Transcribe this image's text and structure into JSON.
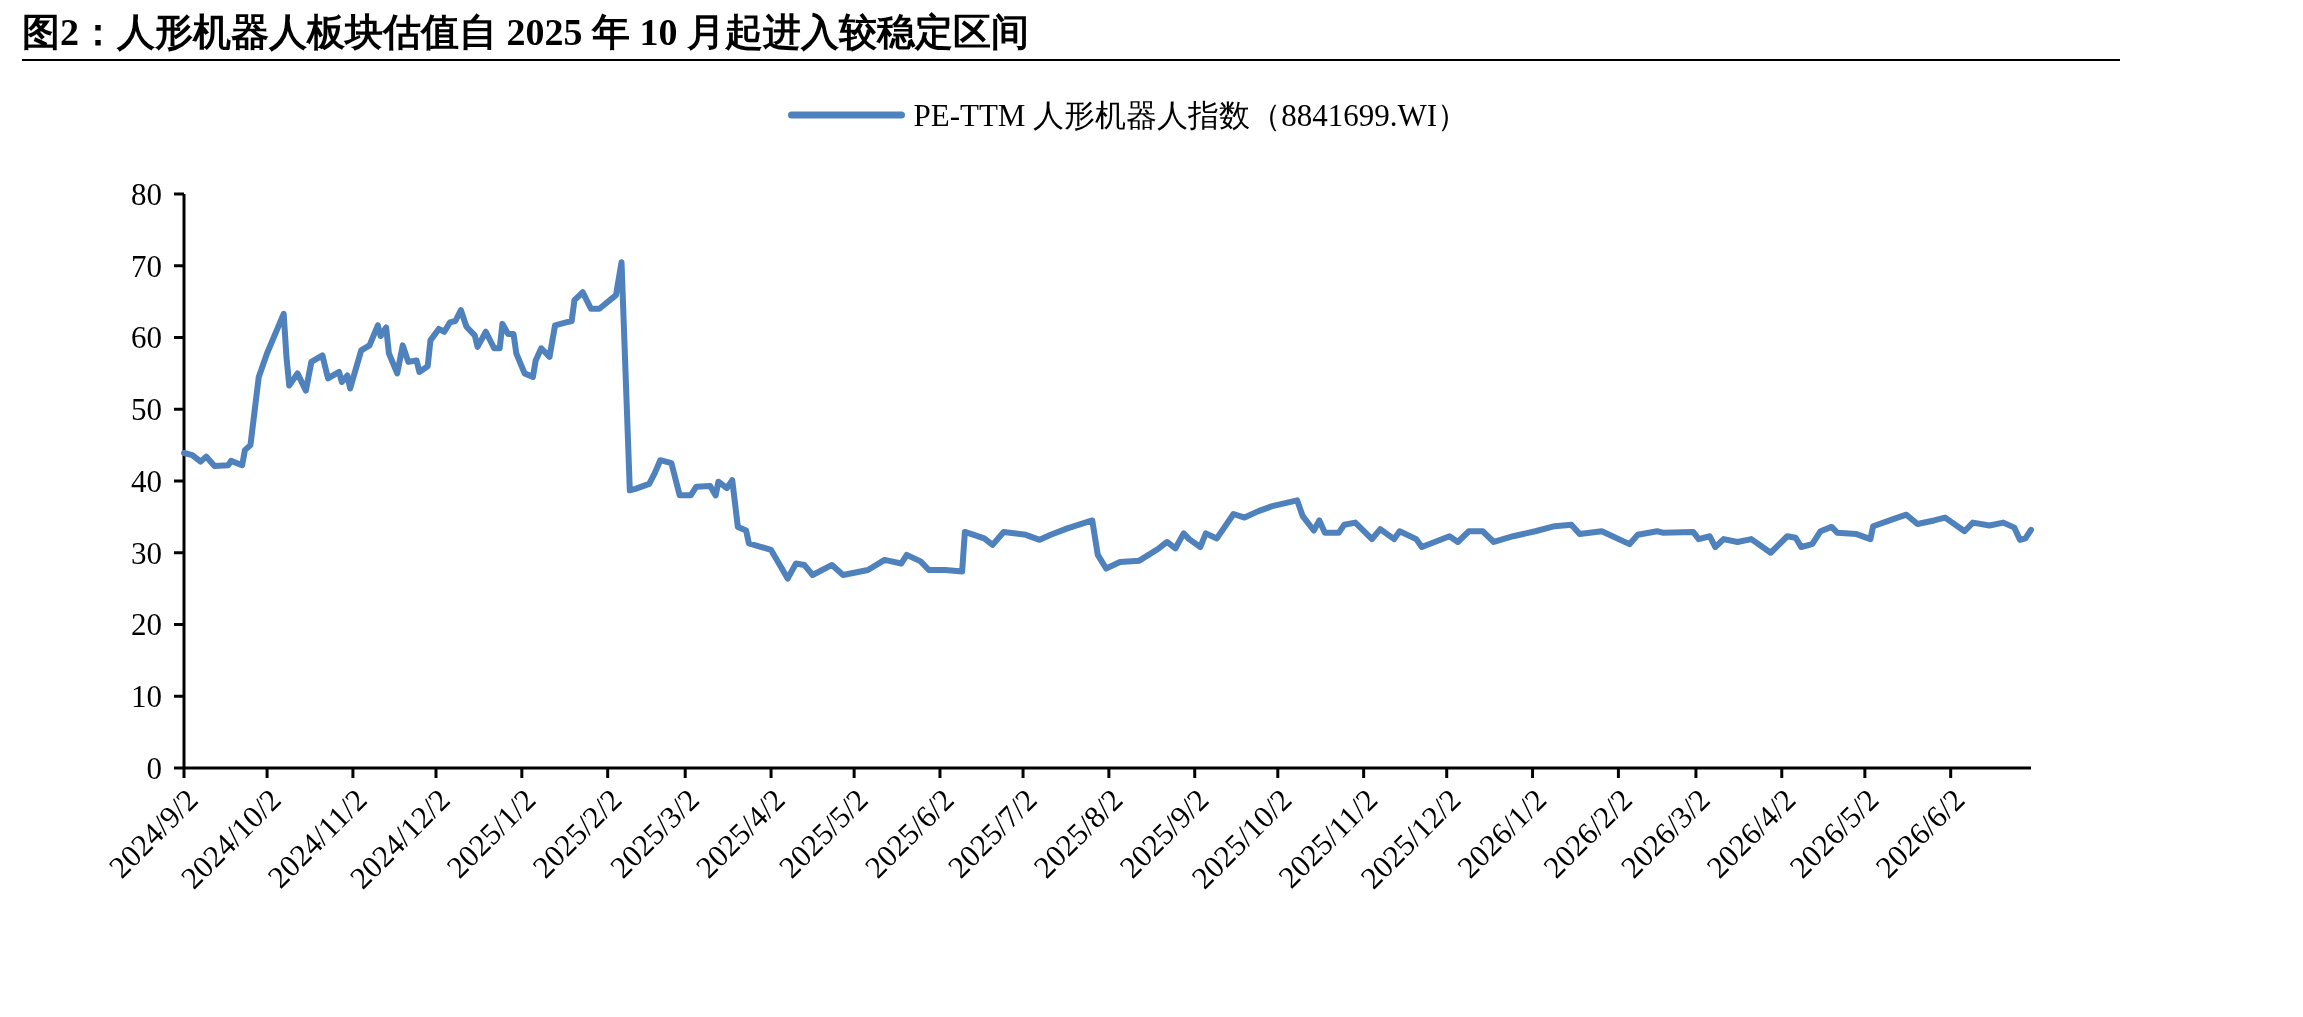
{
  "chart_data": {
    "type": "line",
    "title": "图2：人形机器人板块估值自 2025 年 10 月起进入较稳定区间",
    "legend": "top",
    "grid": false,
    "line_style": "solid",
    "marker": "none",
    "xlim": [
      "2024-09-02",
      "2026-07-01"
    ],
    "xticks": [
      {
        "value": "2024-09-02",
        "label": "2024/9/2"
      },
      {
        "value": "2024-10-02",
        "label": "2024/10/2"
      },
      {
        "value": "2024-11-02",
        "label": "2024/11/2"
      },
      {
        "value": "2024-12-02",
        "label": "2024/12/2"
      },
      {
        "value": "2025-01-02",
        "label": "2025/1/2"
      },
      {
        "value": "2025-02-02",
        "label": "2025/2/2"
      },
      {
        "value": "2025-03-02",
        "label": "2025/3/2"
      },
      {
        "value": "2025-04-02",
        "label": "2025/4/2"
      },
      {
        "value": "2025-05-02",
        "label": "2025/5/2"
      },
      {
        "value": "2025-06-02",
        "label": "2025/6/2"
      },
      {
        "value": "2025-07-02",
        "label": "2025/7/2"
      },
      {
        "value": "2025-08-02",
        "label": "2025/8/2"
      },
      {
        "value": "2025-09-02",
        "label": "2025/9/2"
      },
      {
        "value": "2025-10-02",
        "label": "2025/10/2"
      },
      {
        "value": "2025-11-02",
        "label": "2025/11/2"
      },
      {
        "value": "2025-12-02",
        "label": "2025/12/2"
      },
      {
        "value": "2026-01-02",
        "label": "2026/1/2"
      },
      {
        "value": "2026-02-02",
        "label": "2026/2/2"
      },
      {
        "value": "2026-03-02",
        "label": "2026/3/2"
      },
      {
        "value": "2026-04-02",
        "label": "2026/4/2"
      },
      {
        "value": "2026-05-02",
        "label": "2026/5/2"
      },
      {
        "value": "2026-06-02",
        "label": "2026/6/2"
      }
    ],
    "ylim": [
      0,
      80
    ],
    "yticks": [
      0,
      10,
      20,
      30,
      40,
      50,
      60,
      70,
      80
    ],
    "x": [
      "2024-09-02",
      "2024-09-05",
      "2024-09-08",
      "2024-09-10",
      "2024-09-13",
      "2024-09-18",
      "2024-09-19",
      "2024-09-23",
      "2024-09-24",
      "2024-09-26",
      "2024-09-29",
      "2024-10-02",
      "2024-10-08",
      "2024-10-09",
      "2024-10-10",
      "2024-10-13",
      "2024-10-16",
      "2024-10-18",
      "2024-10-22",
      "2024-10-24",
      "2024-10-28",
      "2024-10-29",
      "2024-10-31",
      "2024-11-01",
      "2024-11-05",
      "2024-11-08",
      "2024-11-11",
      "2024-11-12",
      "2024-11-14",
      "2024-11-15",
      "2024-11-18",
      "2024-11-20",
      "2024-11-22",
      "2024-11-25",
      "2024-11-26",
      "2024-11-29",
      "2024-11-30",
      "2024-12-03",
      "2024-12-05",
      "2024-12-07",
      "2024-12-09",
      "2024-12-11",
      "2024-12-13",
      "2024-12-16",
      "2024-12-17",
      "2024-12-20",
      "2024-12-23",
      "2024-12-25",
      "2024-12-26",
      "2024-12-28",
      "2024-12-30",
      "2024-12-31",
      "2025-01-03",
      "2025-01-06",
      "2025-01-07",
      "2025-01-09",
      "2025-01-12",
      "2025-01-14",
      "2025-01-18",
      "2025-01-20",
      "2025-01-21",
      "2025-01-24",
      "2025-01-27",
      "2025-01-30",
      "2025-02-05",
      "2025-02-07",
      "2025-02-10",
      "2025-02-12",
      "2025-02-17",
      "2025-02-19",
      "2025-02-21",
      "2025-02-25",
      "2025-02-28",
      "2025-03-04",
      "2025-03-06",
      "2025-03-11",
      "2025-03-13",
      "2025-03-14",
      "2025-03-17",
      "2025-03-19",
      "2025-03-21",
      "2025-03-24",
      "2025-03-25",
      "2025-04-02",
      "2025-04-08",
      "2025-04-11",
      "2025-04-14",
      "2025-04-17",
      "2025-04-24",
      "2025-04-28",
      "2025-05-07",
      "2025-05-13",
      "2025-05-19",
      "2025-05-21",
      "2025-05-26",
      "2025-05-29",
      "2025-06-04",
      "2025-06-10",
      "2025-06-11",
      "2025-06-18",
      "2025-06-21",
      "2025-06-25",
      "2025-07-03",
      "2025-07-08",
      "2025-07-12",
      "2025-07-18",
      "2025-07-27",
      "2025-07-29",
      "2025-08-01",
      "2025-08-06",
      "2025-08-13",
      "2025-08-20",
      "2025-08-23",
      "2025-08-26",
      "2025-08-29",
      "2025-08-31",
      "2025-09-04",
      "2025-09-06",
      "2025-09-10",
      "2025-09-16",
      "2025-09-20",
      "2025-09-25",
      "2025-09-30",
      "2025-10-09",
      "2025-10-11",
      "2025-10-15",
      "2025-10-17",
      "2025-10-19",
      "2025-10-24",
      "2025-10-26",
      "2025-10-30",
      "2025-11-05",
      "2025-11-08",
      "2025-11-13",
      "2025-11-15",
      "2025-11-21",
      "2025-11-23",
      "2025-12-03",
      "2025-12-06",
      "2025-12-10",
      "2025-12-15",
      "2025-12-19",
      "2025-12-26",
      "2026-01-03",
      "2026-01-10",
      "2026-01-16",
      "2026-01-19",
      "2026-01-27",
      "2026-02-06",
      "2026-02-09",
      "2026-02-16",
      "2026-02-18",
      "2026-03-01",
      "2026-03-03",
      "2026-03-07",
      "2026-03-09",
      "2026-03-12",
      "2026-03-17",
      "2026-03-22",
      "2026-03-29",
      "2026-04-04",
      "2026-04-07",
      "2026-04-09",
      "2026-04-13",
      "2026-04-16",
      "2026-04-20",
      "2026-04-22",
      "2026-04-29",
      "2026-05-04",
      "2026-05-05",
      "2026-05-13",
      "2026-05-17",
      "2026-05-21",
      "2026-05-27",
      "2026-05-31",
      "2026-06-07",
      "2026-06-10",
      "2026-06-16",
      "2026-06-21",
      "2026-06-25",
      "2026-06-27",
      "2026-06-29",
      "2026-07-01"
    ],
    "series": [
      {
        "name": "PE-TTM  人形机器人指数（8841699.WI）",
        "color": "#4f81bd",
        "values": [
          43.9,
          43.6,
          42.7,
          43.4,
          42.1,
          42.2,
          42.8,
          42.2,
          44.3,
          45.0,
          54.5,
          57.8,
          63.3,
          57.3,
          53.3,
          55.0,
          52.6,
          56.6,
          57.5,
          54.3,
          55.2,
          53.8,
          54.7,
          52.9,
          58.2,
          58.9,
          61.7,
          60.2,
          61.4,
          57.8,
          55.0,
          58.9,
          56.6,
          56.8,
          55.2,
          56.0,
          59.6,
          61.2,
          60.8,
          62.1,
          62.3,
          63.8,
          61.5,
          60.3,
          58.7,
          60.8,
          58.5,
          58.5,
          61.9,
          60.5,
          60.5,
          57.8,
          55.0,
          54.5,
          56.8,
          58.5,
          57.3,
          61.7,
          62.1,
          62.3,
          65.2,
          66.3,
          64.0,
          64.0,
          65.9,
          70.5,
          38.7,
          38.9,
          39.6,
          41.1,
          42.9,
          42.5,
          38.0,
          38.0,
          39.2,
          39.3,
          38.0,
          39.9,
          39.0,
          40.1,
          33.6,
          33.1,
          31.3,
          30.4,
          26.4,
          28.5,
          28.3,
          26.9,
          28.3,
          26.9,
          27.6,
          29.0,
          28.5,
          29.7,
          28.8,
          27.6,
          27.6,
          27.4,
          32.9,
          32.0,
          31.1,
          32.9,
          32.5,
          31.8,
          32.5,
          33.4,
          34.5,
          29.7,
          27.8,
          28.7,
          28.9,
          30.6,
          31.5,
          30.6,
          32.7,
          31.9,
          30.8,
          32.7,
          32.0,
          35.4,
          34.9,
          35.8,
          36.5,
          37.3,
          35.1,
          33.1,
          34.5,
          32.8,
          32.8,
          33.9,
          34.2,
          31.9,
          33.3,
          31.9,
          33.0,
          31.9,
          30.8,
          32.3,
          31.5,
          33.0,
          33.0,
          31.5,
          32.3,
          33.0,
          33.7,
          33.9,
          32.6,
          33.0,
          31.2,
          32.5,
          33.0,
          32.8,
          32.9,
          31.9,
          32.3,
          30.8,
          31.9,
          31.5,
          31.9,
          30.0,
          32.3,
          32.1,
          30.8,
          31.2,
          33.0,
          33.6,
          32.8,
          32.6,
          31.9,
          33.7,
          34.8,
          35.3,
          34.0,
          34.5,
          34.9,
          33.0,
          34.2,
          33.8,
          34.2,
          33.5,
          31.8,
          32.0,
          33.2
        ]
      }
    ]
  }
}
